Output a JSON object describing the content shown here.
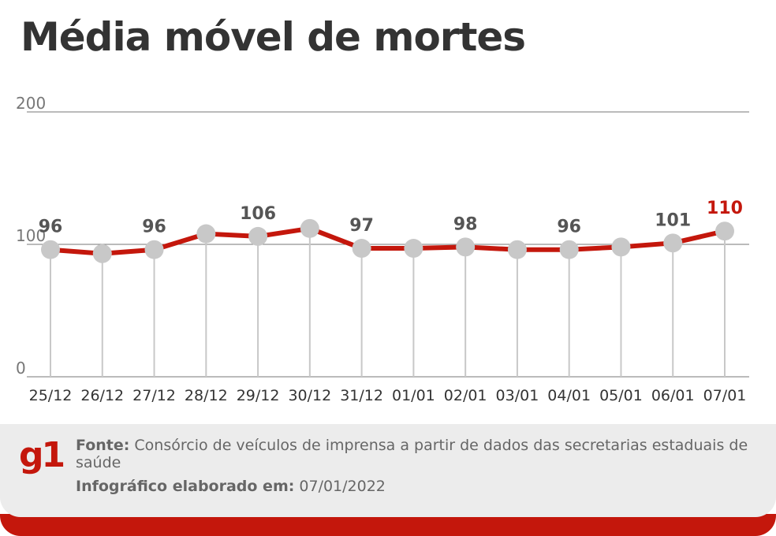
{
  "title": "Média móvel de mortes",
  "chart_data": {
    "type": "line",
    "title": "Média móvel de mortes",
    "xlabel": "",
    "ylabel": "",
    "ylim": [
      0,
      200
    ],
    "yticks": [
      "200",
      "100",
      "0"
    ],
    "grid": true,
    "categories": [
      "25/12",
      "26/12",
      "27/12",
      "28/12",
      "29/12",
      "30/12",
      "31/12",
      "01/01",
      "02/01",
      "03/01",
      "04/01",
      "05/01",
      "06/01",
      "07/01"
    ],
    "values": [
      96,
      93,
      96,
      108,
      106,
      112,
      97,
      97,
      98,
      96,
      96,
      98,
      101,
      110
    ],
    "data_labels": [
      "96",
      "",
      "96",
      "",
      "106",
      "",
      "97",
      "",
      "98",
      "",
      "96",
      "",
      "101",
      "110"
    ],
    "colors": {
      "line": "#c4170c",
      "marker": "#c8c8c8",
      "grid": "#c8c8c8",
      "text": "#555555",
      "highlight": "#c4170c"
    }
  },
  "footer": {
    "logo": "g1",
    "source_label": "Fonte:",
    "source_text": "Consórcio de veículos de imprensa a partir de dados das secretarias estaduais de saúde",
    "made_label": "Infográfico elaborado em:",
    "made_date": "07/01/2022"
  }
}
